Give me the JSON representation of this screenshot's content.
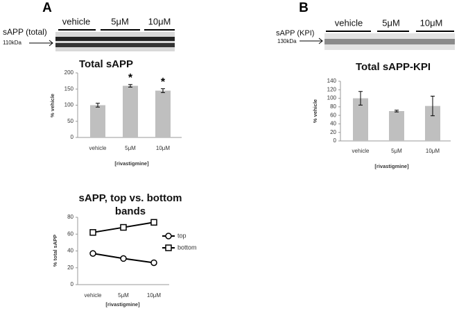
{
  "blots": [
    {
      "panel": "A",
      "lanes": [
        "vehicle",
        "5μM",
        "10μM"
      ],
      "protein": "sAPP (total)",
      "marker": "110kDa"
    },
    {
      "panel": "B",
      "lanes": [
        "vehicle",
        "5μM",
        "10μM"
      ],
      "protein": "sAPP (KPI)",
      "marker": "130kDa"
    }
  ],
  "chart_data": [
    {
      "type": "bar",
      "title": "Total sAPP",
      "y_label": "% vehicle",
      "x_label": "[rivastigmine]",
      "categories": [
        "vehicle",
        "5μM",
        "10μM"
      ],
      "values": [
        100,
        160,
        145
      ],
      "errors": [
        6,
        4,
        6
      ],
      "significance": [
        null,
        "*",
        "*"
      ],
      "color": "#bfbfbf",
      "ylim": [
        0,
        200
      ],
      "yticks": [
        0,
        50,
        100,
        150,
        200
      ]
    },
    {
      "type": "line",
      "title": "sAPP, top vs. bottom bands",
      "y_label": "% total sAPP",
      "x_label": "[rivastigmine]",
      "categories": [
        "vehicle",
        "5μM",
        "10μM"
      ],
      "series": [
        {
          "name": "top",
          "color": "#000000",
          "marker": "circle",
          "values": [
            37,
            31,
            26
          ]
        },
        {
          "name": "bottom",
          "color": "#000000",
          "marker": "square",
          "values": [
            62,
            68,
            74
          ]
        }
      ],
      "ylim": [
        0,
        80
      ],
      "yticks": [
        0,
        20,
        40,
        60,
        80
      ],
      "legend": "right"
    },
    {
      "type": "bar",
      "title": "Total sAPP-KPI",
      "y_label": "% vehicle",
      "x_label": "[rivastigmine]",
      "categories": [
        "vehicle",
        "5μM",
        "10μM"
      ],
      "values": [
        100,
        70,
        82
      ],
      "errors": [
        16,
        2,
        23
      ],
      "color": "#bfbfbf",
      "ylim": [
        0,
        140
      ],
      "yticks": [
        0,
        20,
        40,
        60,
        80,
        100,
        120,
        140
      ]
    }
  ]
}
